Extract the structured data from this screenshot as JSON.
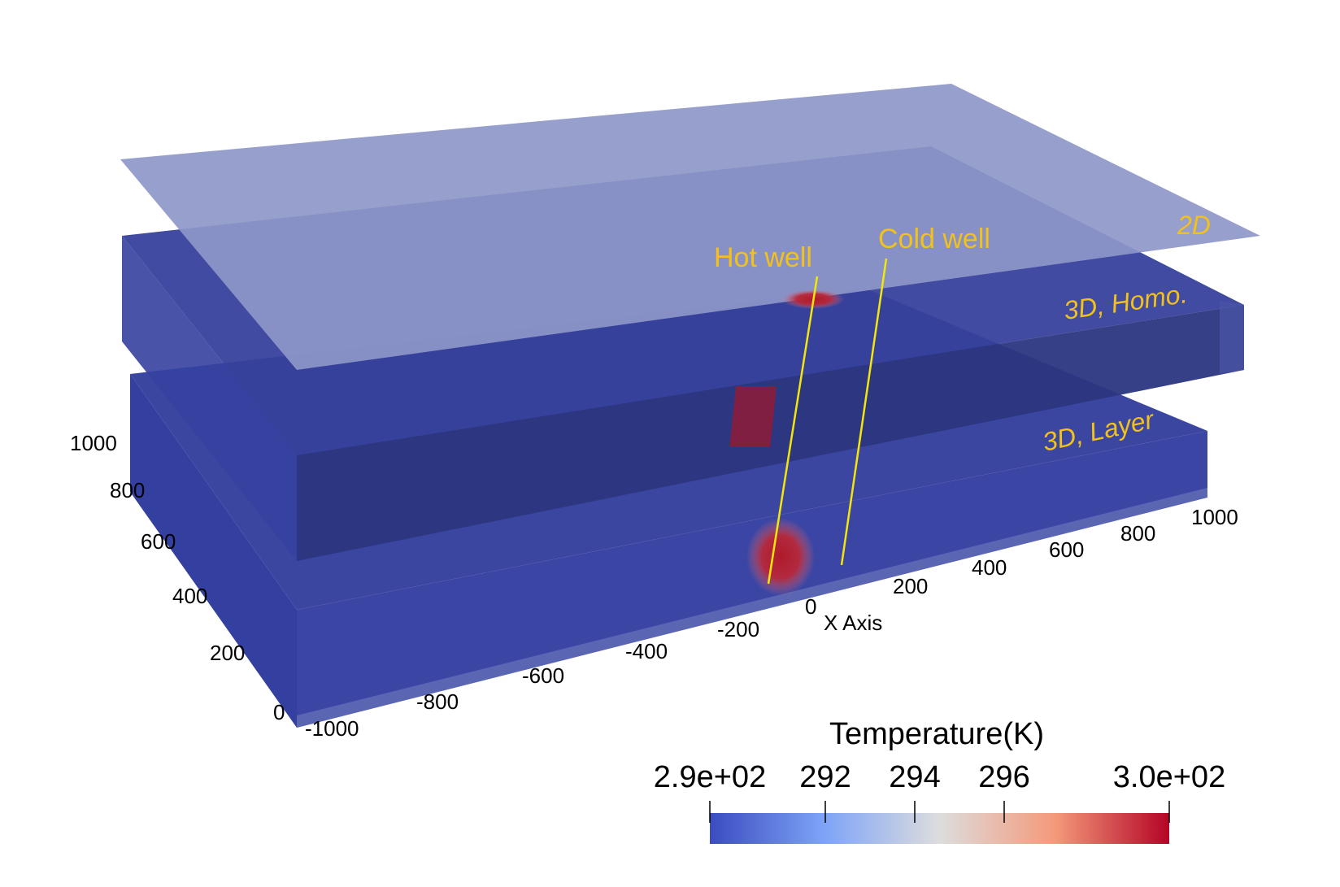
{
  "labels": {
    "layer_2d": "2D",
    "layer_3d_homo": "3D, Homo.",
    "layer_3d_layer": "3D, Layer",
    "hot_well": "Hot well",
    "cold_well": "Cold well",
    "x_axis": "X Axis"
  },
  "x_ticks": [
    "-1000",
    "-800",
    "-600",
    "-400",
    "-200",
    "0",
    "200",
    "400",
    "600",
    "800",
    "1000"
  ],
  "y_ticks": [
    "0",
    "200",
    "400",
    "600",
    "800",
    "1000"
  ],
  "colorbar": {
    "title": "Temperature(K)",
    "ticks": [
      "2.9e+02",
      "292",
      "294",
      "296",
      "3.0e+02"
    ],
    "colors": [
      "#3b4cc0",
      "#7ea4f7",
      "#dddddd",
      "#f49a7b",
      "#b40426"
    ]
  },
  "colors": {
    "plane_2d": "#8e97c9",
    "slab_top": "#3a46a0",
    "slab_side": "#2a3585",
    "label_yellow": "#f2c11c",
    "hot_spot": "#b01a2a"
  }
}
